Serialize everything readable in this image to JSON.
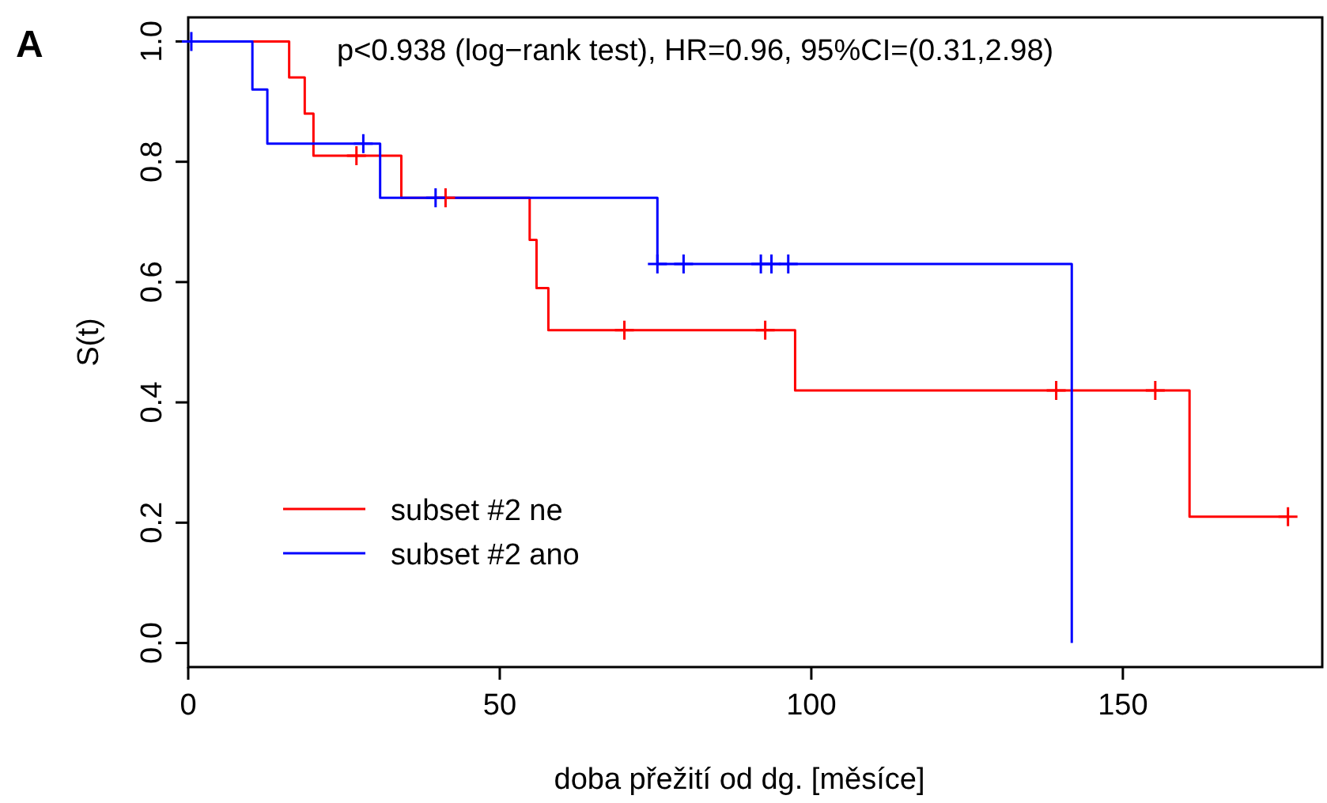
{
  "chart_data": {
    "type": "step",
    "title": "A",
    "xlabel": "doba přežití od dg. [měsíce]",
    "ylabel": "S(t)",
    "annotations": [
      "p<0.938 (log−rank test), HR=0.96, 95%CI=(0.31,2.98)"
    ],
    "series": [
      {
        "name": "subset #2 ne",
        "color": "#ff0000",
        "x": [
          0,
          16.2,
          18.7,
          20.1,
          34.2,
          54.8,
          55.9,
          57.8,
          97.4,
          160.7,
          176.5
        ],
        "values": [
          1,
          0.94,
          0.88,
          0.81,
          0.74,
          0.67,
          0.59,
          0.52,
          0.42,
          0.21,
          0.21
        ]
      },
      {
        "name": "subset #2 ano",
        "color": "#0000ff",
        "x": [
          0,
          10.3,
          12.7,
          30.8,
          75.3,
          141.8
        ],
        "values": [
          1,
          0.92,
          0.83,
          0.74,
          0.63,
          0
        ]
      },
      {
        "type": "scatter",
        "marker": "cross",
        "color": "#ff0000",
        "x": [
          27,
          41.3,
          70,
          92.6,
          139.3,
          155.2,
          176.5
        ],
        "values": [
          0.81,
          0.74,
          0.52,
          0.52,
          0.42,
          0.42,
          0.21
        ]
      },
      {
        "type": "scatter",
        "marker": "cross",
        "color": "#0000ff",
        "x": [
          0.5,
          28.1,
          39.7,
          75.3,
          79.5,
          91.9,
          93.6,
          96.3
        ],
        "values": [
          1,
          0.83,
          0.74,
          0.63,
          0.63,
          0.63,
          0.63,
          0.63
        ]
      }
    ],
    "xlim": [
      0,
      182
    ],
    "xticks": [
      0,
      50,
      100,
      150
    ],
    "ylim": [
      -0.04,
      1.04
    ],
    "yticks": [
      {
        "value": 0,
        "label": "0.0"
      },
      {
        "value": 0.2,
        "label": "0.2"
      },
      {
        "value": 0.4,
        "label": "0.4"
      },
      {
        "value": 0.6,
        "label": "0.6"
      },
      {
        "value": 0.8,
        "label": "0.8"
      },
      {
        "value": 1,
        "label": "1.0"
      }
    ],
    "grid": false,
    "legend": "bottom left",
    "line_style": "solid"
  }
}
